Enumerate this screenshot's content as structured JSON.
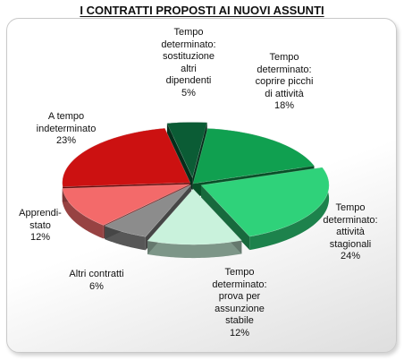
{
  "chart_data": {
    "type": "pie",
    "title": "I CONTRATTI PROPOSTI AI NUOVI ASSUNTI",
    "unit": "%",
    "slices": [
      {
        "label_lines": [
          "Tempo",
          "determinato:",
          "sostituzione",
          "altri",
          "dipendenti"
        ],
        "value_text": "5%",
        "value": 5,
        "color": "#0b5c35"
      },
      {
        "label_lines": [
          "Tempo",
          "determinato:",
          "coprire picchi",
          "di attività"
        ],
        "value_text": "18%",
        "value": 18,
        "color": "#10a050"
      },
      {
        "label_lines": [
          "Tempo",
          "determinato:",
          "attività",
          "stagionali"
        ],
        "value_text": "24%",
        "value": 24,
        "color": "#2fd27a"
      },
      {
        "label_lines": [
          "Tempo",
          "determinato:",
          "prova per",
          "assunzione",
          "stabile"
        ],
        "value_text": "12%",
        "value": 12,
        "color": "#c9f2dc"
      },
      {
        "label_lines": [
          "Altri contratti"
        ],
        "value_text": "6%",
        "value": 6,
        "color": "#8c8c8c"
      },
      {
        "label_lines": [
          "Apprendi-",
          "stato"
        ],
        "value_text": "12%",
        "value": 12,
        "color": "#f36a6a"
      },
      {
        "label_lines": [
          "A tempo",
          "indeterminato"
        ],
        "value_text": "23%",
        "value": 23,
        "color": "#cc1111"
      }
    ]
  }
}
